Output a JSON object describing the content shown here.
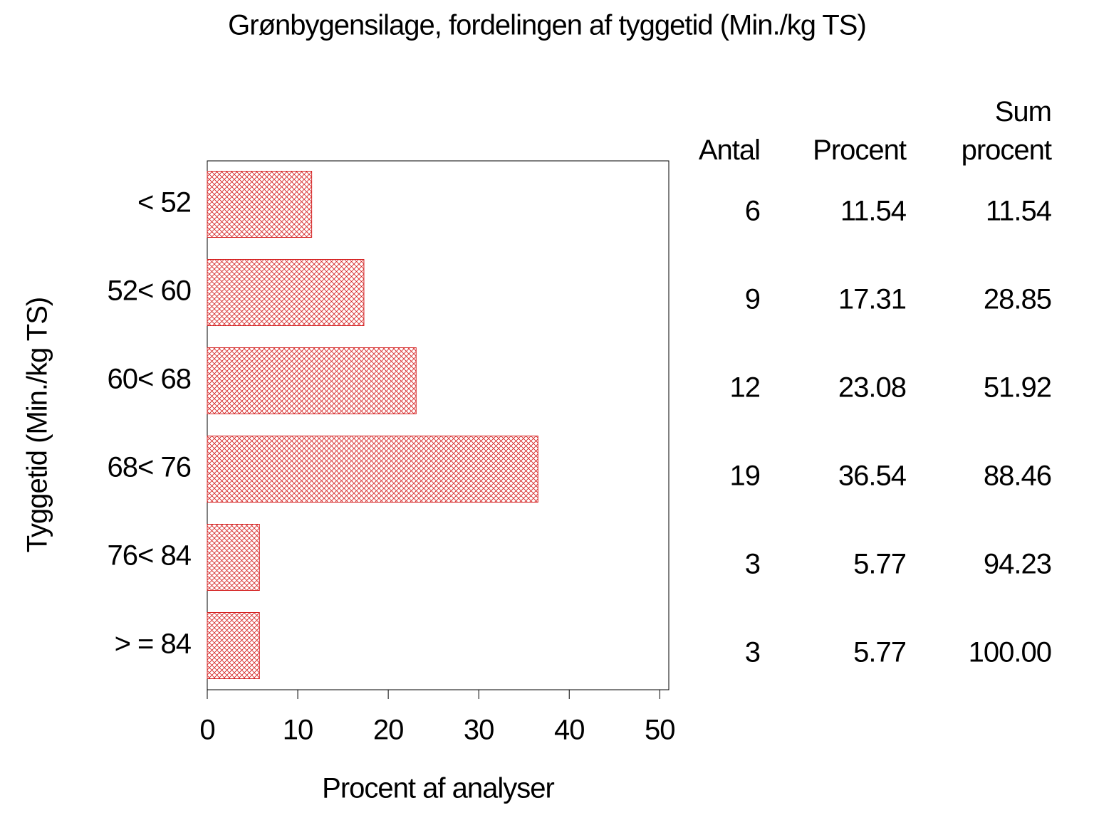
{
  "chart_data": {
    "type": "hbar",
    "title": "Grønbygensilage, fordelingen af tyggetid (Min./kg TS)",
    "x_label": "Procent af analyser",
    "y_label": "Tyggetid (Min./kg TS)",
    "categories": [
      "< 52",
      "52< 60",
      "60< 68",
      "68< 76",
      "76< 84",
      "> = 84"
    ],
    "values": [
      11.54,
      17.31,
      23.08,
      36.54,
      5.77,
      5.77
    ],
    "color": "#d42020",
    "xlim": [
      0,
      51
    ],
    "xticks": [
      0,
      10,
      20,
      30,
      40,
      50
    ],
    "table_columns": [
      "Antal",
      "Procent",
      "Sum procent"
    ],
    "counts": [
      6,
      9,
      12,
      19,
      3,
      3
    ],
    "cumulative": [
      11.54,
      28.85,
      51.92,
      88.46,
      94.23,
      {
        "value": 100,
        "label": "100.00"
      }
    ]
  }
}
